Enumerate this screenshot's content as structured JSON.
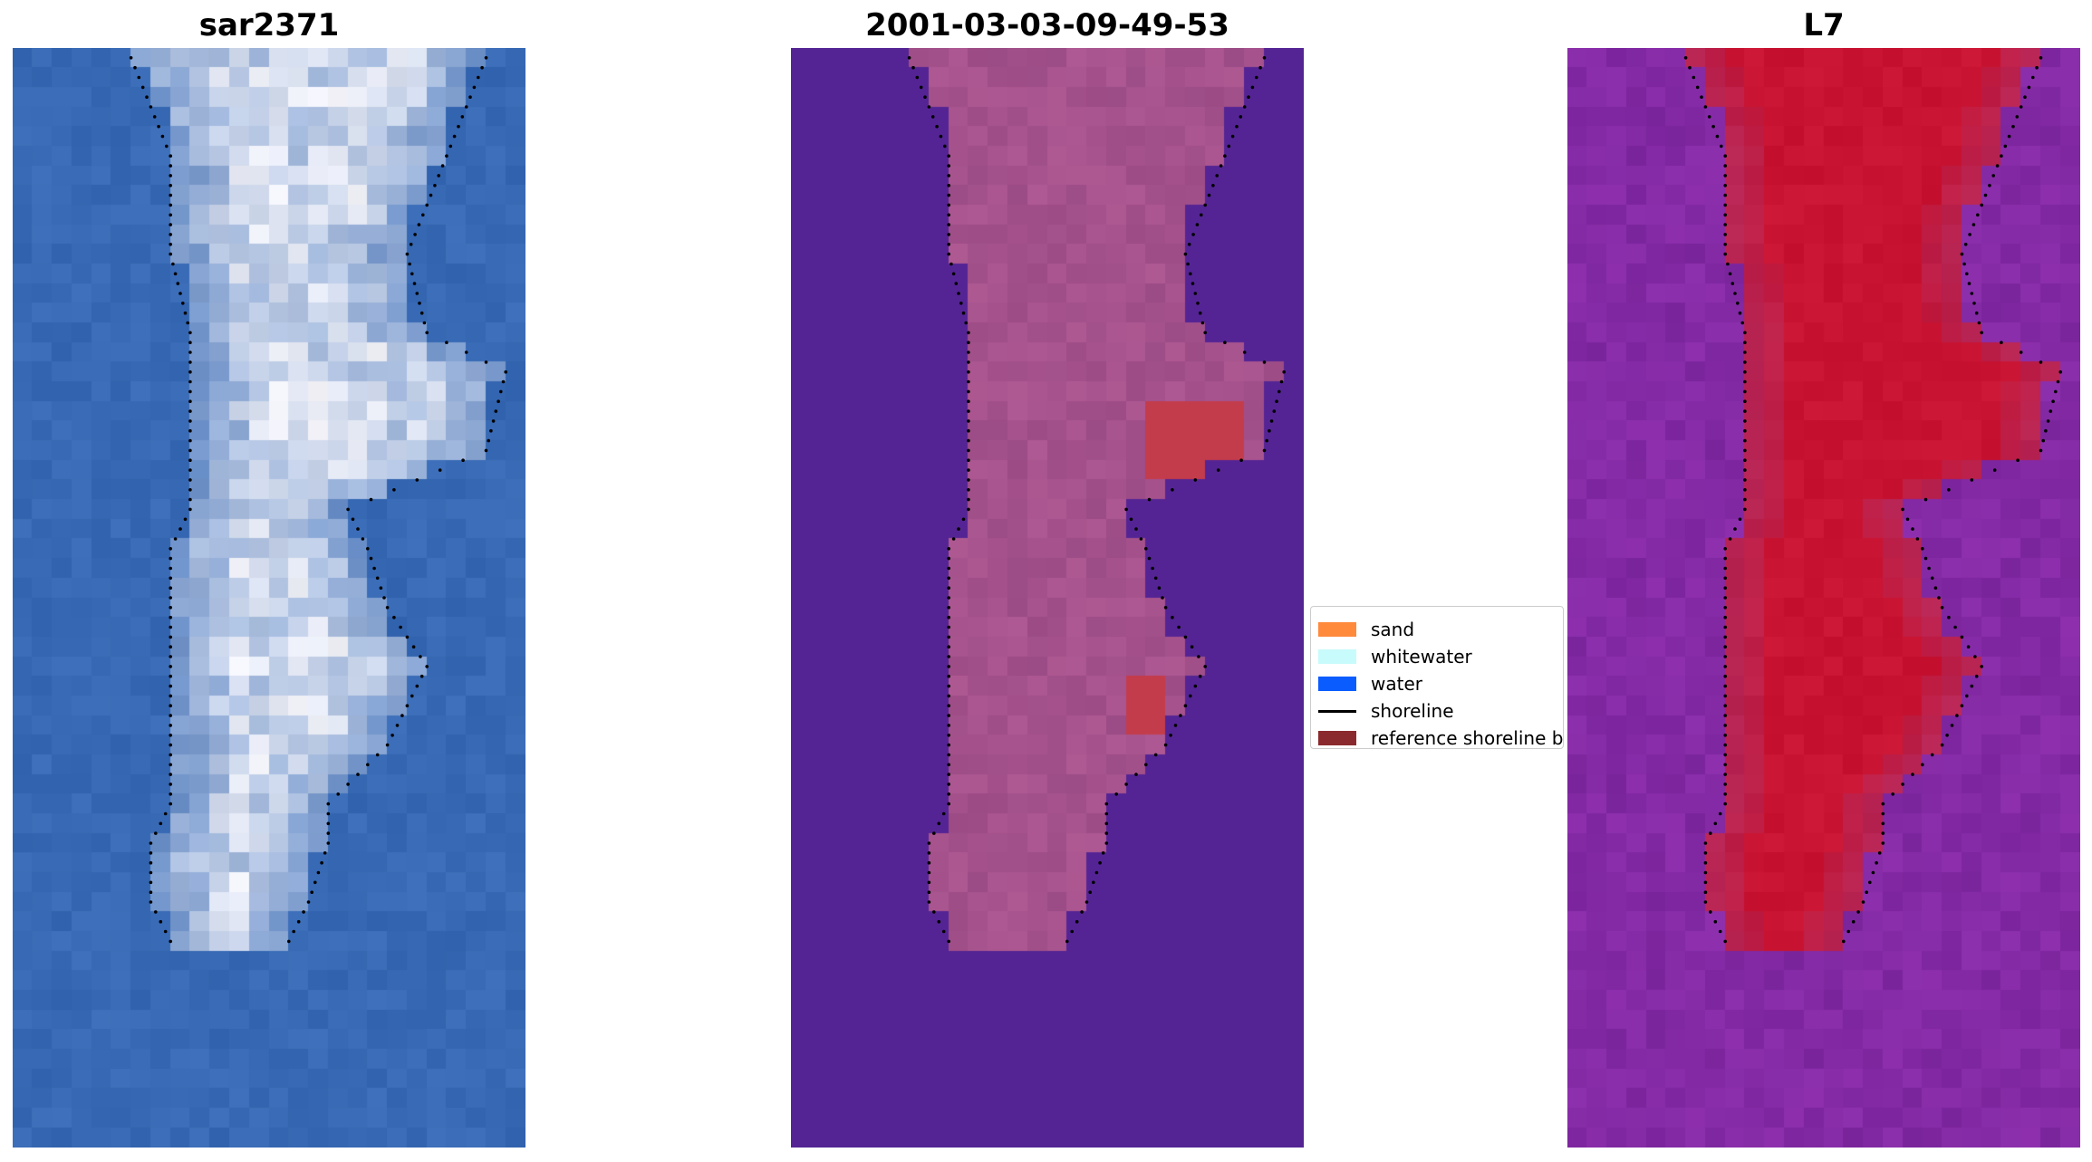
{
  "panels": [
    {
      "title": "sar2371",
      "style": "blue"
    },
    {
      "title": "2001-03-03-09-49-53",
      "style": "purple"
    },
    {
      "title": "L7",
      "style": "magenta"
    }
  ],
  "legend": {
    "items": [
      {
        "label": "sand",
        "color": "#ff8a3c",
        "kind": "patch"
      },
      {
        "label": "whitewater",
        "color": "#c8fbfb",
        "kind": "patch"
      },
      {
        "label": "water",
        "color": "#0a5cff",
        "kind": "patch"
      },
      {
        "label": "shoreline",
        "color": "#000000",
        "kind": "line"
      },
      {
        "label": "reference shoreline buffer",
        "color": "#8b2a2e",
        "kind": "patch"
      }
    ]
  }
}
